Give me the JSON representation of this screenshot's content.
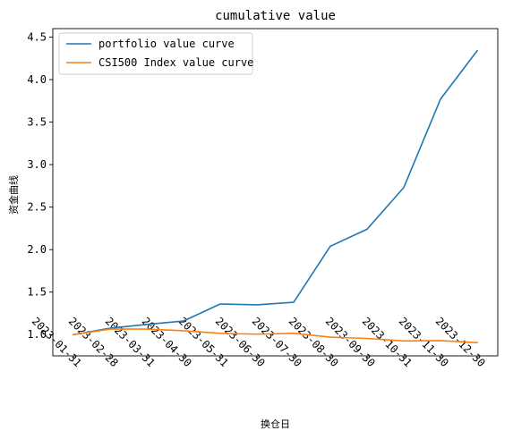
{
  "chart_data": {
    "type": "line",
    "title": "cumulative value",
    "xlabel": "换仓日",
    "ylabel": "资金曲线",
    "x": [
      "2023-01-31",
      "2023-02-28",
      "2023-03-31",
      "2023-04-30",
      "2023-05-31",
      "2023-06-30",
      "2023-07-30",
      "2023-08-30",
      "2023-09-30",
      "2023-10-31",
      "2023-11-30",
      "2023-12-30"
    ],
    "ylim": [
      0.75,
      4.6
    ],
    "yticks": [
      1.0,
      1.5,
      2.0,
      2.5,
      3.0,
      3.5,
      4.0,
      4.5
    ],
    "ytick_labels": [
      "1.0",
      "1.5",
      "2.0",
      "2.5",
      "3.0",
      "3.5",
      "4.0",
      "4.5"
    ],
    "grid": false,
    "legend_position": "top-left",
    "series": [
      {
        "name": "portfolio value curve",
        "color": "#1f77b4",
        "values": [
          1.0,
          1.075,
          1.12,
          1.16,
          1.36,
          1.35,
          1.38,
          2.04,
          2.24,
          2.73,
          3.77,
          4.34
        ]
      },
      {
        "name": "CSI500 Index value curve",
        "color": "#ff7f0e",
        "values": [
          1.0,
          1.065,
          1.065,
          1.045,
          1.015,
          1.005,
          1.015,
          0.97,
          0.955,
          0.925,
          0.93,
          0.905
        ]
      }
    ]
  }
}
